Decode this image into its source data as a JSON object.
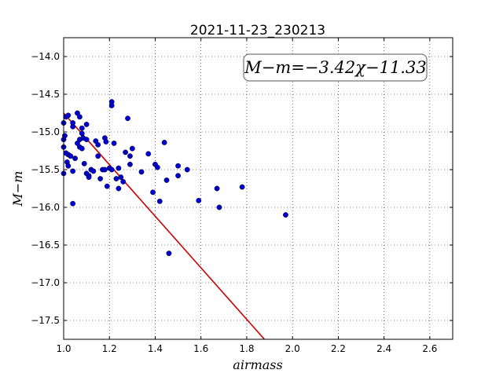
{
  "chart_data": {
    "type": "scatter",
    "title": "2021-11-23_230213",
    "xlabel": "airmass",
    "ylabel": "M−m",
    "xlim": [
      1.0,
      2.7
    ],
    "ylim": [
      -17.75,
      -13.75
    ],
    "y_inverted": true,
    "grid": true,
    "x_ticks": [
      1.0,
      1.2,
      1.4,
      1.6,
      1.8,
      2.0,
      2.2,
      2.4,
      2.6
    ],
    "y_ticks": [
      -14.0,
      -14.5,
      -15.0,
      -15.5,
      -16.0,
      -16.5,
      -17.0,
      -17.5
    ],
    "annotation": "M−m=−3.42χ−11.33",
    "points_color": "#0000cc",
    "fit_color": "#cc0000",
    "fit": {
      "slope": -3.42,
      "intercept": -11.33
    },
    "points": [
      [
        1.0,
        -15.55
      ],
      [
        1.0,
        -15.2
      ],
      [
        1.0,
        -15.1
      ],
      [
        1.0,
        -14.88
      ],
      [
        1.005,
        -15.05
      ],
      [
        1.01,
        -15.28
      ],
      [
        1.01,
        -14.8
      ],
      [
        1.015,
        -15.4
      ],
      [
        1.02,
        -15.45
      ],
      [
        1.02,
        -14.78
      ],
      [
        1.02,
        -15.3
      ],
      [
        1.03,
        -15.32
      ],
      [
        1.04,
        -14.88
      ],
      [
        1.04,
        -14.93
      ],
      [
        1.04,
        -15.52
      ],
      [
        1.04,
        -15.95
      ],
      [
        1.05,
        -15.35
      ],
      [
        1.06,
        -14.75
      ],
      [
        1.06,
        -15.15
      ],
      [
        1.07,
        -14.8
      ],
      [
        1.07,
        -15.1
      ],
      [
        1.07,
        -15.2
      ],
      [
        1.08,
        -14.95
      ],
      [
        1.08,
        -15.02
      ],
      [
        1.08,
        -15.22
      ],
      [
        1.085,
        -15.08
      ],
      [
        1.09,
        -15.42
      ],
      [
        1.1,
        -14.9
      ],
      [
        1.1,
        -15.1
      ],
      [
        1.1,
        -15.55
      ],
      [
        1.11,
        -15.58
      ],
      [
        1.11,
        -15.6
      ],
      [
        1.12,
        -15.5
      ],
      [
        1.13,
        -15.52
      ],
      [
        1.14,
        -15.12
      ],
      [
        1.15,
        -15.17
      ],
      [
        1.15,
        -15.32
      ],
      [
        1.16,
        -15.62
      ],
      [
        1.17,
        -15.5
      ],
      [
        1.18,
        -15.08
      ],
      [
        1.18,
        -15.5
      ],
      [
        1.185,
        -15.13
      ],
      [
        1.19,
        -15.72
      ],
      [
        1.2,
        -15.48
      ],
      [
        1.21,
        -14.6
      ],
      [
        1.21,
        -14.65
      ],
      [
        1.21,
        -15.5
      ],
      [
        1.22,
        -15.15
      ],
      [
        1.23,
        -15.62
      ],
      [
        1.24,
        -15.75
      ],
      [
        1.24,
        -15.48
      ],
      [
        1.25,
        -15.6
      ],
      [
        1.26,
        -15.66
      ],
      [
        1.27,
        -15.27
      ],
      [
        1.28,
        -14.82
      ],
      [
        1.29,
        -15.32
      ],
      [
        1.29,
        -15.43
      ],
      [
        1.3,
        -15.22
      ],
      [
        1.34,
        -15.53
      ],
      [
        1.37,
        -15.29
      ],
      [
        1.39,
        -15.8
      ],
      [
        1.4,
        -15.43
      ],
      [
        1.41,
        -15.47
      ],
      [
        1.42,
        -15.92
      ],
      [
        1.44,
        -15.14
      ],
      [
        1.45,
        -15.64
      ],
      [
        1.46,
        -16.61
      ],
      [
        1.5,
        -15.45
      ],
      [
        1.5,
        -15.58
      ],
      [
        1.54,
        -15.5
      ],
      [
        1.59,
        -15.91
      ],
      [
        1.67,
        -15.75
      ],
      [
        1.68,
        -16.0
      ],
      [
        1.78,
        -15.73
      ],
      [
        1.97,
        -16.1
      ]
    ]
  }
}
